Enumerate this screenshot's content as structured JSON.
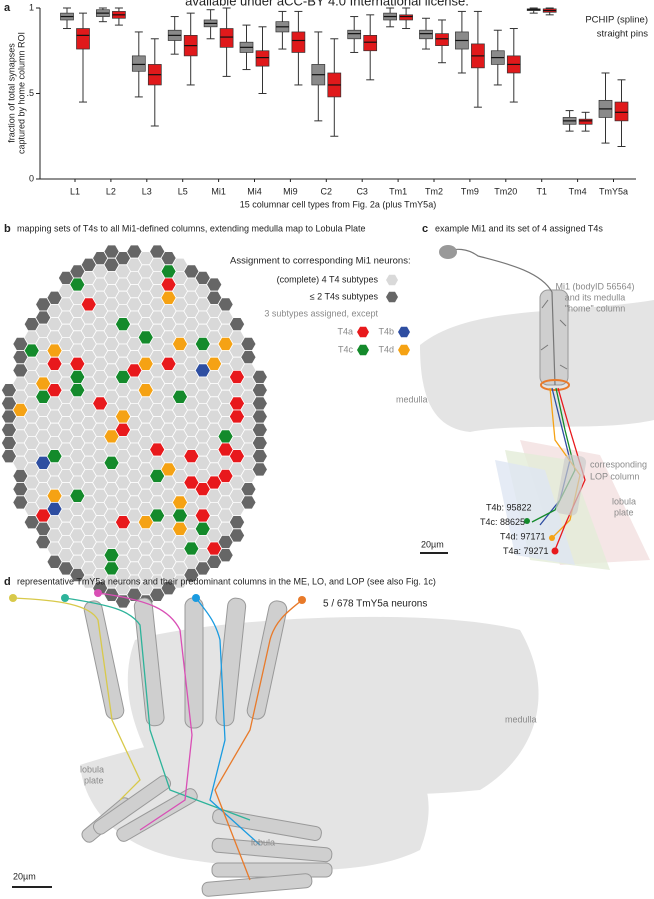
{
  "header": "available under aCC-BY 4.0 International license.",
  "panel_labels": [
    "a",
    "b",
    "c",
    "d"
  ],
  "chart_data": {
    "type": "box",
    "ylabel": [
      "fraction of total synapses",
      "captured by home column ROI"
    ],
    "xlabel": "15 columnar cell types from Fig. 2a (plus TmY5a)",
    "categories": [
      "L1",
      "L2",
      "L3",
      "L5",
      "Mi1",
      "Mi4",
      "Mi9",
      "C2",
      "C3",
      "Tm1",
      "Tm2",
      "Tm9",
      "Tm20",
      "T1",
      "Tm4",
      "TmY5a"
    ],
    "ylim": [
      0,
      1
    ],
    "yticks": [
      0,
      {
        "value": 0.5,
        "label": ".5"
      },
      1
    ],
    "series": [
      {
        "name": "PCHIP (spline)",
        "color": "#8a8a8a",
        "whisker_low": [
          0.88,
          0.92,
          0.48,
          0.73,
          0.82,
          0.64,
          0.76,
          0.34,
          0.74,
          0.89,
          0.76,
          0.62,
          0.55,
          0.97,
          0.28,
          0.21
        ],
        "q1": [
          0.93,
          0.95,
          0.63,
          0.81,
          0.89,
          0.74,
          0.86,
          0.55,
          0.82,
          0.93,
          0.82,
          0.76,
          0.67,
          0.985,
          0.32,
          0.36
        ],
        "median": [
          0.95,
          0.97,
          0.67,
          0.84,
          0.91,
          0.77,
          0.89,
          0.61,
          0.85,
          0.95,
          0.85,
          0.81,
          0.71,
          0.99,
          0.34,
          0.41
        ],
        "q3": [
          0.97,
          0.99,
          0.72,
          0.87,
          0.93,
          0.8,
          0.92,
          0.67,
          0.87,
          0.97,
          0.87,
          0.86,
          0.75,
          0.995,
          0.36,
          0.46
        ],
        "whisker_high": [
          1,
          1,
          0.86,
          0.95,
          0.99,
          0.9,
          0.98,
          0.86,
          0.95,
          1,
          0.94,
          0.98,
          0.87,
          1,
          0.4,
          0.62
        ]
      },
      {
        "name": "straight pins",
        "color": "#e0191b",
        "whisker_low": [
          0.45,
          0.9,
          0.31,
          0.55,
          0.6,
          0.5,
          0.55,
          0.25,
          0.58,
          0.88,
          0.68,
          0.42,
          0.45,
          0.96,
          0.28,
          0.19
        ],
        "q1": [
          0.76,
          0.94,
          0.55,
          0.72,
          0.77,
          0.66,
          0.74,
          0.48,
          0.75,
          0.93,
          0.78,
          0.65,
          0.62,
          0.975,
          0.32,
          0.34
        ],
        "median": [
          0.84,
          0.96,
          0.61,
          0.78,
          0.83,
          0.71,
          0.81,
          0.55,
          0.8,
          0.95,
          0.82,
          0.72,
          0.67,
          0.985,
          0.34,
          0.39
        ],
        "q3": [
          0.88,
          0.98,
          0.67,
          0.84,
          0.88,
          0.75,
          0.86,
          0.62,
          0.84,
          0.96,
          0.85,
          0.79,
          0.72,
          0.995,
          0.35,
          0.45
        ],
        "whisker_high": [
          0.97,
          1,
          0.82,
          0.97,
          1,
          0.89,
          0.98,
          0.82,
          0.96,
          1,
          0.93,
          0.98,
          0.88,
          1,
          0.39,
          0.58
        ]
      }
    ]
  },
  "panel_b": {
    "title": "mapping sets of T4s to all Mi1-defined columns, extending medulla map to Lobula Plate",
    "legend_title": "Assignment to corresponding Mi1 neurons:",
    "legend": [
      {
        "label": "(complete) 4 T4 subtypes",
        "color": "#d9d9d9"
      },
      {
        "label": "≤ 2 T4s subtypes",
        "color": "#666666"
      }
    ],
    "except_note": "3 subtypes assigned, except",
    "subtypes": [
      {
        "label": "T4a",
        "color": "#e8191c"
      },
      {
        "label": "T4b",
        "color": "#2e4ea1"
      },
      {
        "label": "T4c",
        "color": "#148a2b"
      },
      {
        "label": "T4d",
        "color": "#f5a214"
      }
    ]
  },
  "panel_c": {
    "title": "example Mi1 and its set of 4 assigned T4s",
    "mi1_note": [
      "Mi1 (bodyID 56564)",
      "and its medulla",
      "\"home\" column"
    ],
    "medulla": "medulla",
    "lop_note": [
      "corresponding",
      "LOP column"
    ],
    "lobula_plate": [
      "lobula",
      "plate"
    ],
    "cells": [
      {
        "label": "T4b: 95822",
        "color": "#2e4ea1"
      },
      {
        "label": "T4c: 88625",
        "color": "#148a2b"
      },
      {
        "label": "T4d: 97171",
        "color": "#f5a214"
      },
      {
        "label": "T4a: 79271",
        "color": "#e8191c"
      }
    ],
    "scale": "20µm"
  },
  "panel_d": {
    "title": "representative TmY5a neurons and their predominant columns in the ME, LO, and LOP (see also Fig. 1c)",
    "count": "5 / 678 TmY5a neurons",
    "medulla": "medulla",
    "lobula_plate": [
      "lobula",
      "plate"
    ],
    "lobula": "lobula",
    "scale": "20µm"
  }
}
